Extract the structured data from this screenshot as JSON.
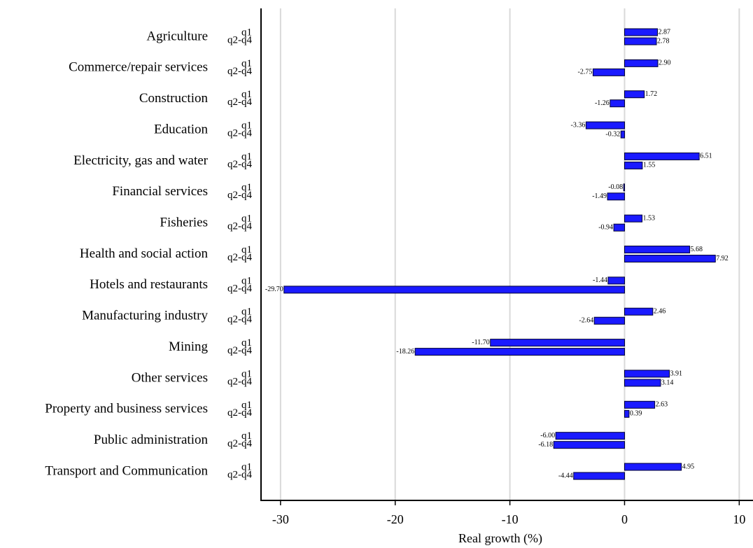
{
  "chart_data": {
    "type": "grouped-hbar",
    "xlabel": "Real growth (%)",
    "categories": [
      "Agriculture",
      "Commerce/repair services",
      "Construction",
      "Education",
      "Electricity, gas and water",
      "Financial services",
      "Fisheries",
      "Health and social action",
      "Hotels and restaurants",
      "Manufacturing industry",
      "Mining",
      "Other services",
      "Property and business services",
      "Public administration",
      "Transport and Communication"
    ],
    "series": [
      {
        "name": "q1",
        "color": "#1a1aff",
        "values": [
          2.87,
          2.9,
          1.72,
          -3.36,
          6.51,
          -0.08,
          1.53,
          5.68,
          -1.44,
          2.46,
          -11.7,
          3.91,
          2.63,
          -6.0,
          4.95
        ],
        "value_labels": [
          "2.87",
          "2.90",
          "1.72",
          "-3.36",
          "6.51",
          "-0.08",
          "1.53",
          "5.68",
          "-1.44",
          "2.46",
          "-11.70",
          "3.91",
          "2.63",
          "-6.00",
          "4.95"
        ]
      },
      {
        "name": "q2-q4",
        "color": "#1a1aff",
        "values": [
          2.78,
          -2.75,
          -1.26,
          -0.32,
          1.55,
          -1.49,
          -0.94,
          7.92,
          -29.7,
          -2.64,
          -18.26,
          3.14,
          0.39,
          -6.18,
          -4.44
        ],
        "value_labels": [
          "2.78",
          "-2.75",
          "-1.26",
          "-0.32",
          "1.55",
          "-1.49",
          "-0.94",
          "7.92",
          "-29.70",
          "-2.64",
          "-18.26",
          "3.14",
          "0.39",
          "-6.18",
          "-4.44"
        ]
      }
    ],
    "xlim": [
      -31.7,
      11.2
    ],
    "xticks": [
      -30,
      -20,
      -10,
      0,
      10
    ],
    "grid": true
  }
}
